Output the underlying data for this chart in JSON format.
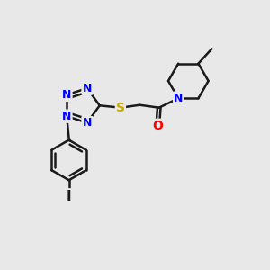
{
  "background_color": "#e8e8e8",
  "bond_color": "#1a1a1a",
  "nitrogen_color": "#0000ff",
  "sulfur_color": "#ccaa00",
  "oxygen_color": "#ff0000",
  "iodine_color": "#1a1a1a",
  "line_width": 1.8,
  "figsize": [
    3.0,
    3.0
  ],
  "dpi": 100,
  "xlim": [
    0,
    10
  ],
  "ylim": [
    0,
    10
  ]
}
